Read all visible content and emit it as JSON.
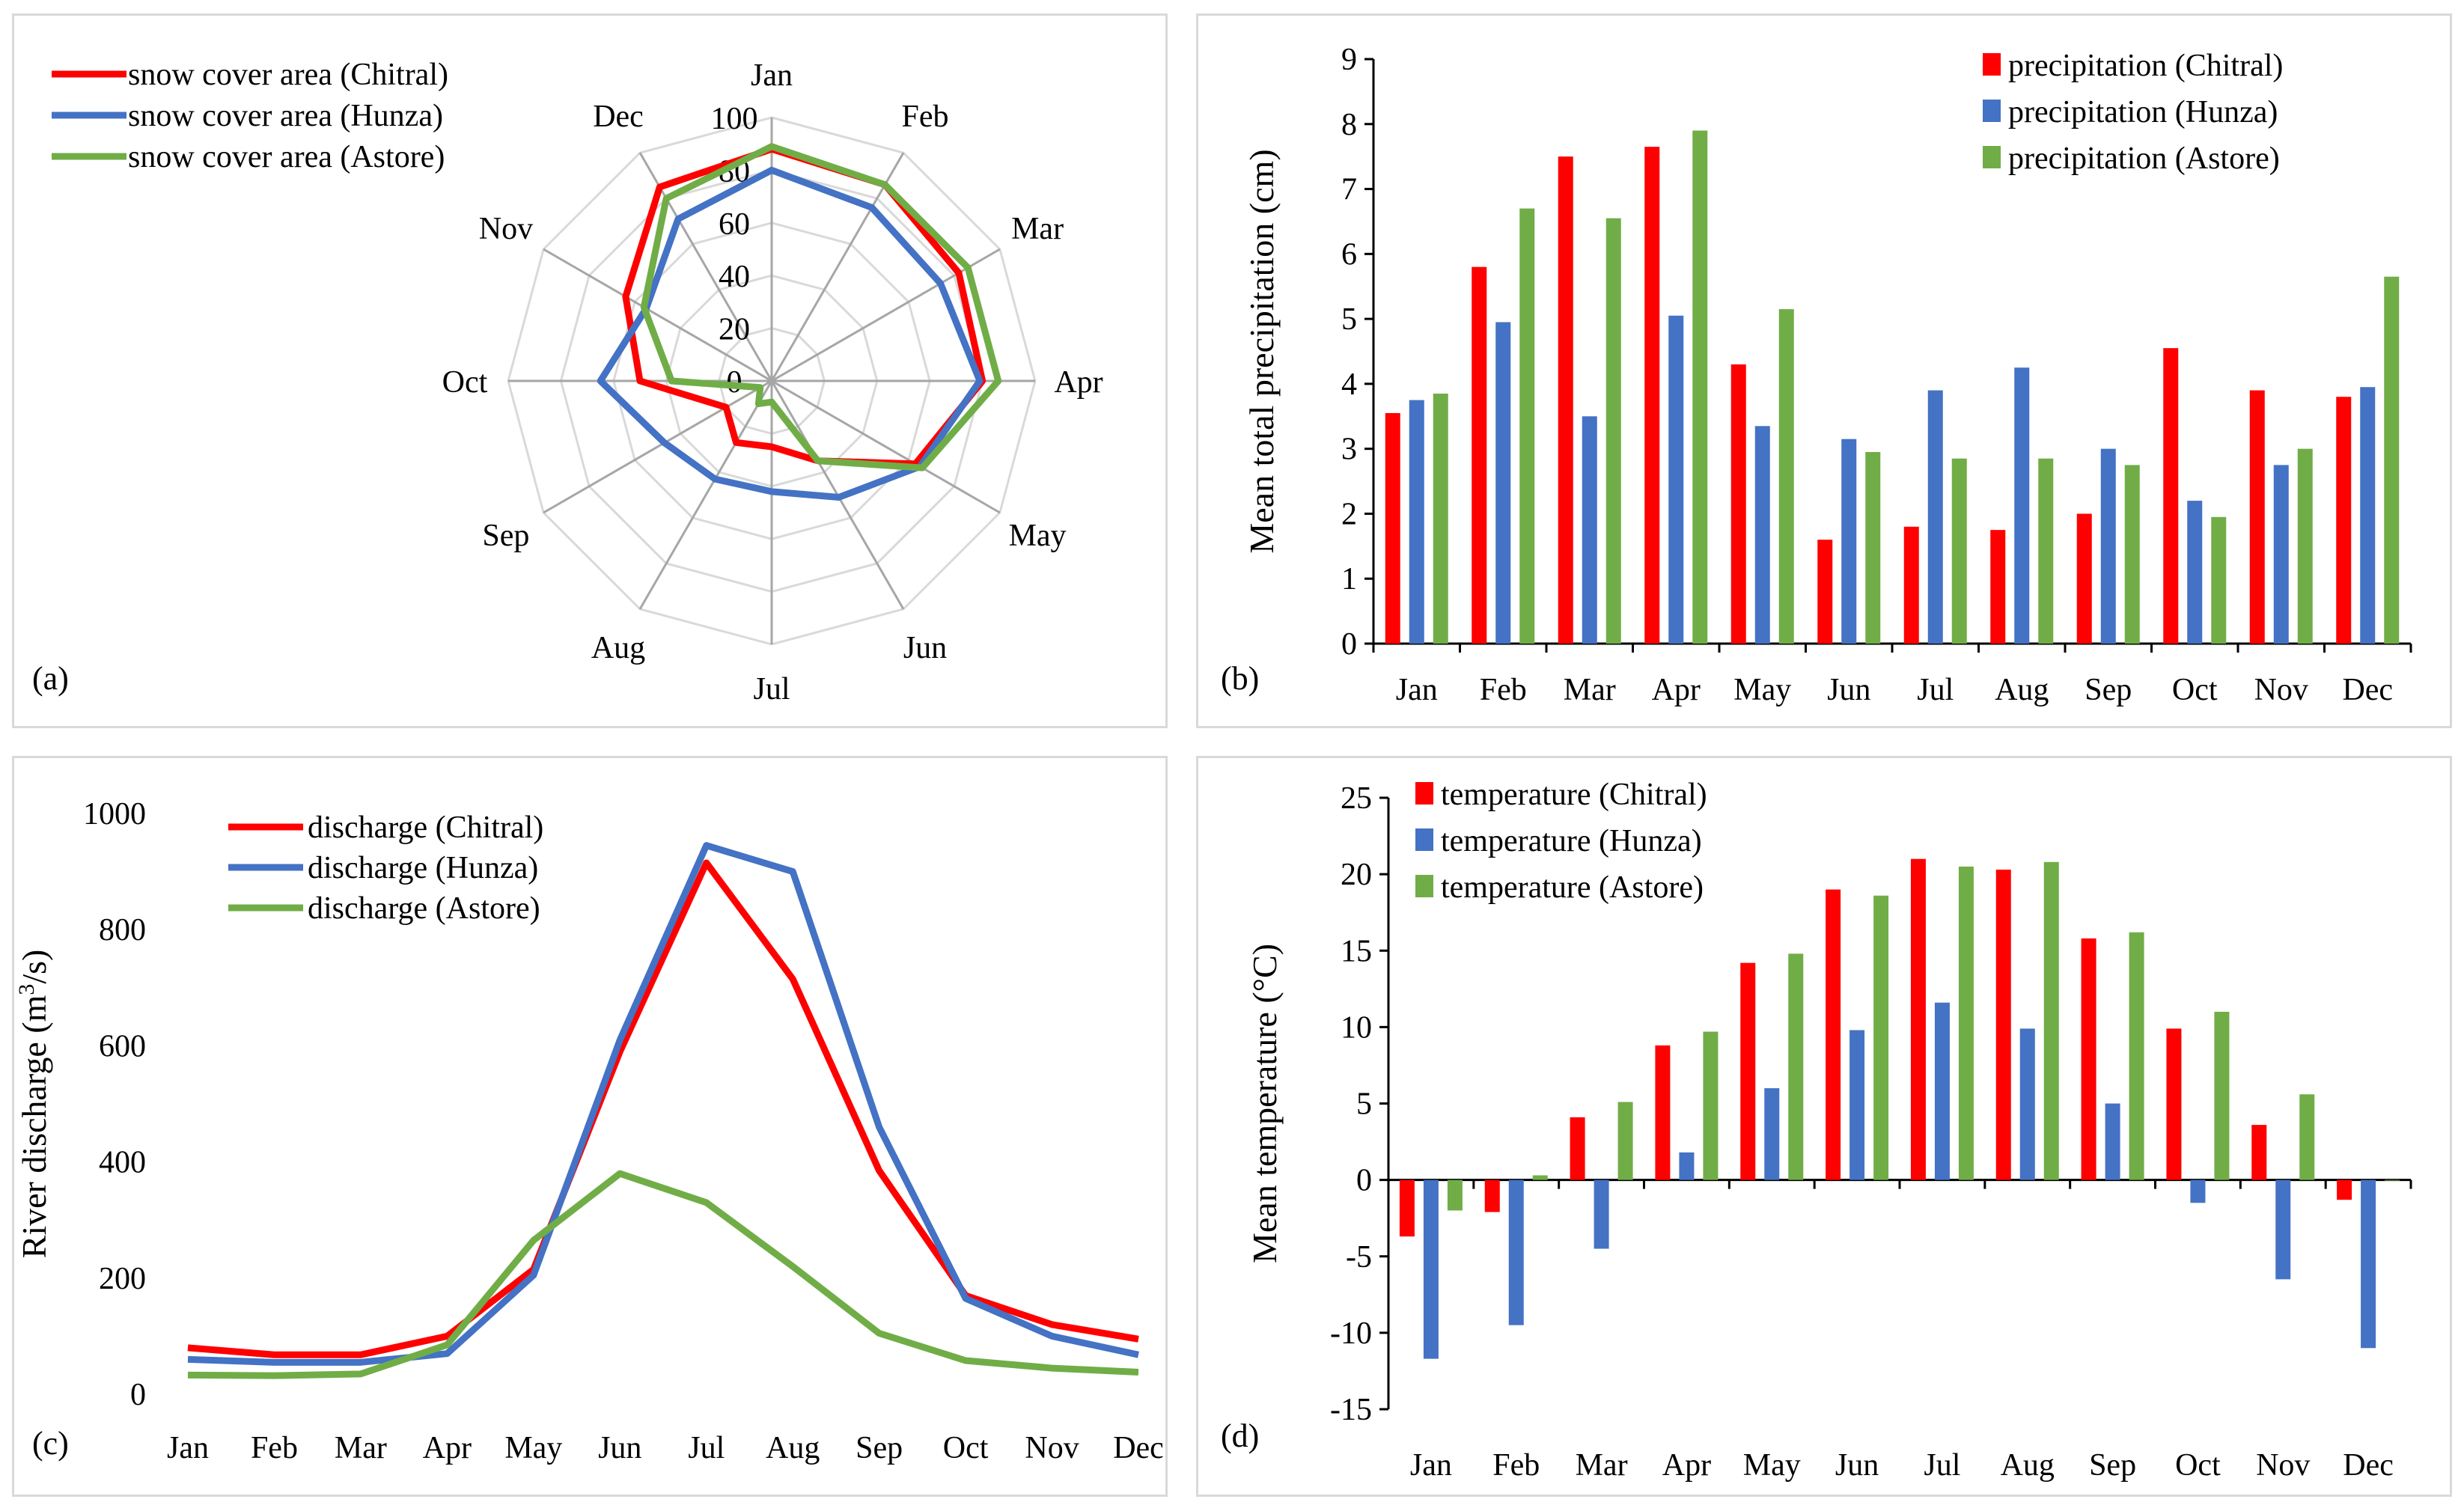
{
  "colors": {
    "chitral": "#ff0000",
    "hunza": "#4472c4",
    "astore": "#70ad47",
    "grid": "#d9d9d9",
    "axis": "#000000"
  },
  "chart_data": [
    {
      "id": "a",
      "type": "radar",
      "panel_label": "(a)",
      "categories": [
        "Jan",
        "Feb",
        "Mar",
        "Apr",
        "May",
        "Jun",
        "Jul",
        "Aug",
        "Sep",
        "Oct",
        "Nov",
        "Dec"
      ],
      "rlim": [
        0,
        100
      ],
      "ticks": [
        "0",
        "20",
        "40",
        "60",
        "80",
        "100"
      ],
      "tick_values": [
        0,
        20,
        40,
        60,
        80,
        100
      ],
      "series": [
        {
          "name": "snow cover area (Chitral)",
          "color_key": "chitral",
          "values": [
            88,
            86,
            82,
            80,
            63,
            35,
            25,
            27,
            20,
            50,
            64,
            85
          ]
        },
        {
          "name": "snow cover area (Hunza)",
          "color_key": "hunza",
          "values": [
            80,
            76,
            74,
            79,
            65,
            51,
            42,
            43,
            47,
            65,
            55,
            71
          ]
        },
        {
          "name": "snow cover area (Astore)",
          "color_key": "astore",
          "values": [
            89,
            86,
            86,
            86,
            66,
            35,
            8,
            10,
            5,
            38,
            56,
            80
          ]
        }
      ]
    },
    {
      "id": "b",
      "type": "bar",
      "panel_label": "(b)",
      "categories": [
        "Jan",
        "Feb",
        "Mar",
        "Apr",
        "May",
        "Jun",
        "Jul",
        "Aug",
        "Sep",
        "Oct",
        "Nov",
        "Dec"
      ],
      "ylabel": "Mean total precipitation (cm)",
      "ylim": [
        0,
        9
      ],
      "yticks": [
        0,
        1,
        2,
        3,
        4,
        5,
        6,
        7,
        8,
        9
      ],
      "series": [
        {
          "name": "precipitation (Chitral)",
          "color_key": "chitral",
          "values": [
            3.55,
            5.8,
            7.5,
            7.65,
            4.3,
            1.6,
            1.8,
            1.75,
            2.0,
            4.55,
            3.9,
            3.8
          ]
        },
        {
          "name": "precipitation (Hunza)",
          "color_key": "hunza",
          "values": [
            3.75,
            4.95,
            3.5,
            5.05,
            3.35,
            3.15,
            3.9,
            4.25,
            3.0,
            2.2,
            2.75,
            3.95
          ]
        },
        {
          "name": "precipitation (Astore)",
          "color_key": "astore",
          "values": [
            3.85,
            6.7,
            6.55,
            7.9,
            5.15,
            2.95,
            2.85,
            2.85,
            2.75,
            1.95,
            3.0,
            5.65
          ]
        }
      ]
    },
    {
      "id": "c",
      "type": "line",
      "panel_label": "(c)",
      "categories": [
        "Jan",
        "Feb",
        "Mar",
        "Apr",
        "May",
        "Jun",
        "Jul",
        "Aug",
        "Sep",
        "Oct",
        "Nov",
        "Dec"
      ],
      "ylabel": "River discharge (m3/s)",
      "ylabel_parts": [
        "River discharge (m",
        "3",
        "/s)"
      ],
      "ylim": [
        0,
        1000
      ],
      "yticks": [
        0,
        200,
        400,
        600,
        800,
        1000
      ],
      "series": [
        {
          "name": "discharge (Chitral)",
          "color_key": "chitral",
          "values": [
            80,
            68,
            68,
            100,
            215,
            590,
            915,
            715,
            385,
            170,
            120,
            95
          ]
        },
        {
          "name": "discharge (Hunza)",
          "color_key": "hunza",
          "values": [
            60,
            55,
            55,
            70,
            205,
            610,
            945,
            900,
            460,
            165,
            100,
            68
          ]
        },
        {
          "name": "discharge (Astore)",
          "color_key": "astore",
          "values": [
            33,
            32,
            35,
            85,
            265,
            380,
            330,
            220,
            105,
            58,
            45,
            38
          ]
        }
      ]
    },
    {
      "id": "d",
      "type": "bar",
      "panel_label": "(d)",
      "categories": [
        "Jan",
        "Feb",
        "Mar",
        "Apr",
        "May",
        "Jun",
        "Jul",
        "Aug",
        "Sep",
        "Oct",
        "Nov",
        "Dec"
      ],
      "ylabel": "Mean temperature (°C)",
      "ylim": [
        -15,
        25
      ],
      "yticks": [
        -15,
        -10,
        -5,
        0,
        5,
        10,
        15,
        20,
        25
      ],
      "series": [
        {
          "name": "temperature (Chitral)",
          "color_key": "chitral",
          "values": [
            -3.7,
            -2.1,
            4.1,
            8.8,
            14.2,
            19.0,
            21.0,
            20.3,
            15.8,
            9.9,
            3.6,
            -1.3
          ]
        },
        {
          "name": "temperature (Hunza)",
          "color_key": "hunza",
          "values": [
            -11.7,
            -9.5,
            -4.5,
            1.8,
            6.0,
            9.8,
            11.6,
            9.9,
            5.0,
            -1.5,
            -6.5,
            -11.0
          ]
        },
        {
          "name": "temperature (Astore)",
          "color_key": "astore",
          "values": [
            -2.0,
            0.3,
            5.1,
            9.7,
            14.8,
            18.6,
            20.5,
            20.8,
            16.2,
            11.0,
            5.6,
            0.0
          ]
        }
      ]
    }
  ]
}
